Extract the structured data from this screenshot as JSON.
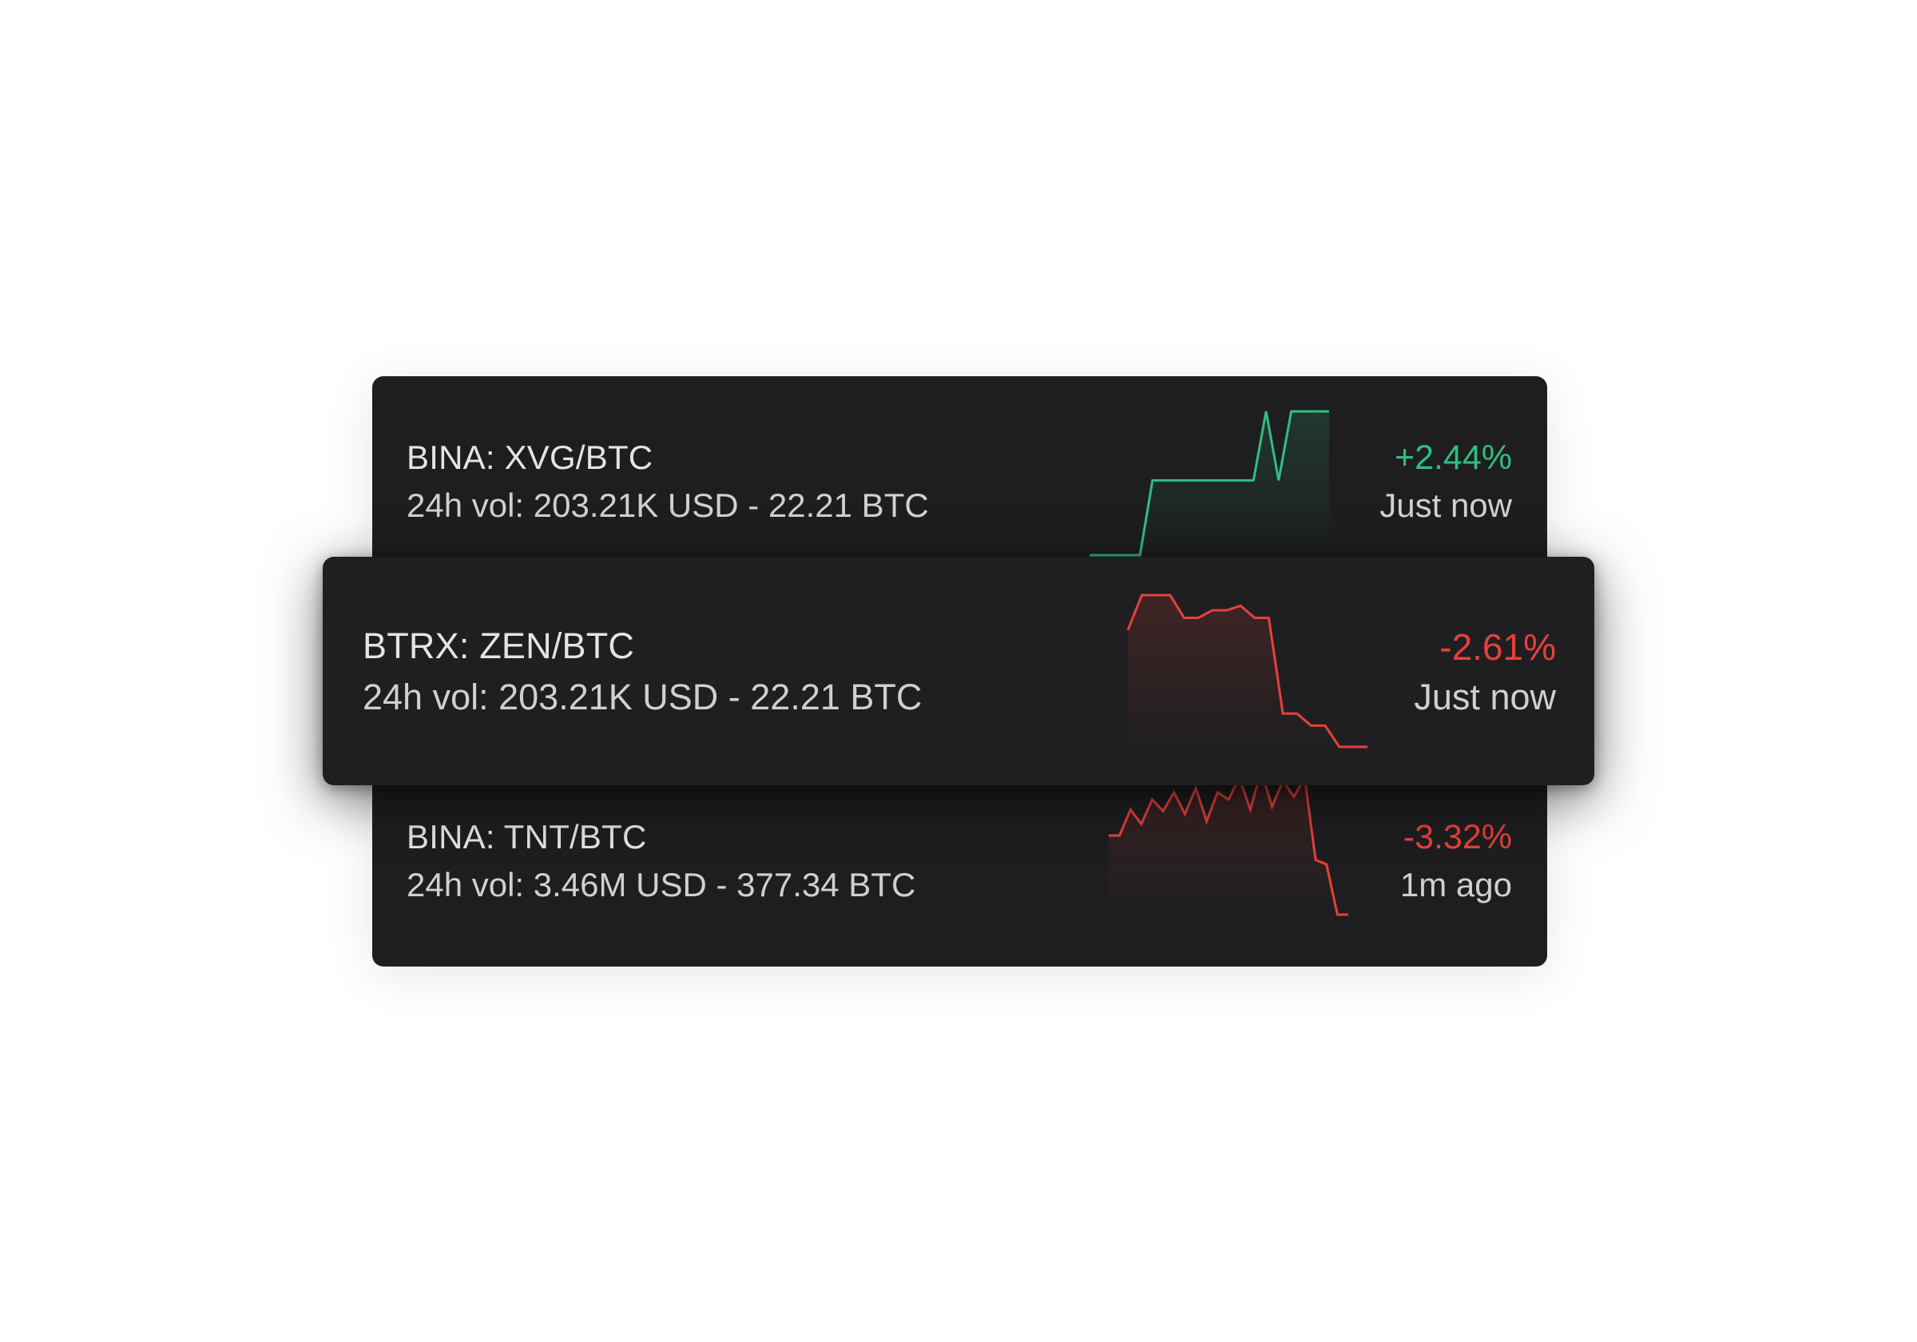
{
  "colors": {
    "card_bg": "#1e1e20",
    "positive": "#2fbf80",
    "negative": "#e8403b",
    "text_primary": "#e4e4e6",
    "text_secondary": "#d0d0d2"
  },
  "tickers": [
    {
      "pair": "BINA: XVG/BTC",
      "volume": "24h vol: 203.21K USD - 22.21 BTC",
      "change": "+2.44%",
      "time": "Just now",
      "trend": "up",
      "sparkline": [
        0,
        0,
        0,
        0,
        0,
        0.52,
        0.52,
        0.52,
        0.52,
        0.52,
        0.52,
        0.52,
        0.52,
        0.52,
        1.0,
        0.52,
        1.0,
        1.0,
        1.0,
        1.0
      ]
    },
    {
      "pair": "BTRX: ZEN/BTC",
      "volume": "24h vol: 203.21K USD - 22.21 BTC",
      "change": "-2.61%",
      "time": "Just now",
      "trend": "down",
      "sparkline": [
        0.77,
        1.0,
        1.0,
        1.0,
        0.85,
        0.85,
        0.9,
        0.9,
        0.93,
        0.85,
        0.85,
        0.22,
        0.22,
        0.14,
        0.14,
        0.0,
        0.0,
        0.0
      ]
    },
    {
      "pair": "BINA: TNT/BTC",
      "volume": "24h vol: 3.46M USD - 377.34 BTC",
      "change": "-3.32%",
      "time": "1m ago",
      "trend": "down",
      "sparkline": [
        0.55,
        0.55,
        0.73,
        0.63,
        0.8,
        0.72,
        0.85,
        0.7,
        0.88,
        0.65,
        0.85,
        0.8,
        0.95,
        0.73,
        1.0,
        0.75,
        0.93,
        0.82,
        0.95,
        0.38,
        0.35,
        0.0,
        0.0
      ]
    }
  ]
}
